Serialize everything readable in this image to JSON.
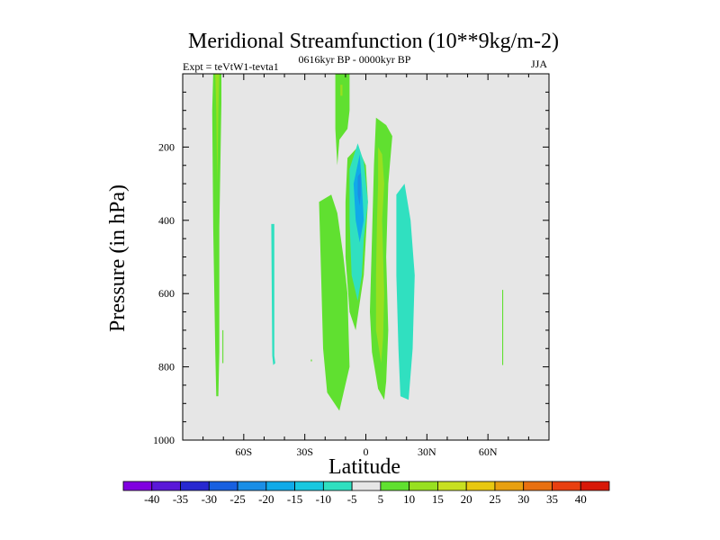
{
  "chart_data": {
    "type": "contour",
    "title": "Meridional Streamfunction (10**9kg/m-2)",
    "subtitle_left": "Expt = teVtW1-tevta1",
    "subtitle_center": "0616kyr BP - 0000kyr BP",
    "subtitle_right": "JJA",
    "xlabel": "Latitude",
    "ylabel": "Pressure (in hPa)",
    "xlim": [
      -90,
      90
    ],
    "ylim": [
      0,
      1000
    ],
    "x_ticks": [
      {
        "value": -60,
        "label": "60S"
      },
      {
        "value": -30,
        "label": "30S"
      },
      {
        "value": 0,
        "label": "0"
      },
      {
        "value": 30,
        "label": "30N"
      },
      {
        "value": 60,
        "label": "60N"
      }
    ],
    "y_ticks": [
      {
        "value": 200,
        "label": "200"
      },
      {
        "value": 400,
        "label": "400"
      },
      {
        "value": 600,
        "label": "600"
      },
      {
        "value": 800,
        "label": "800"
      },
      {
        "value": 1000,
        "label": "1000"
      }
    ],
    "background_color": "#e6e6e6",
    "regions": [
      {
        "level": 5,
        "poly": [
          [
            -75,
            0
          ],
          [
            -71,
            0
          ],
          [
            -71,
            80
          ],
          [
            -72,
            420
          ],
          [
            -72,
            760
          ],
          [
            -72.5,
            880
          ],
          [
            -73.5,
            880
          ],
          [
            -74,
            760
          ],
          [
            -75,
            420
          ],
          [
            -75.5,
            100
          ]
        ]
      },
      {
        "level": 10,
        "poly": [
          [
            -74,
            0
          ],
          [
            -72,
            0
          ],
          [
            -72.5,
            100
          ],
          [
            -73,
            300
          ],
          [
            -73.5,
            100
          ]
        ]
      },
      {
        "level": 5,
        "poly": [
          [
            -70.5,
            700
          ],
          [
            -70,
            700
          ],
          [
            -70,
            790
          ],
          [
            -70.5,
            790
          ]
        ]
      },
      {
        "level": -5,
        "poly": [
          [
            -46.5,
            410
          ],
          [
            -45,
            410
          ],
          [
            -45,
            770
          ],
          [
            -44.5,
            790
          ],
          [
            -45.5,
            795
          ],
          [
            -46,
            770
          ]
        ]
      },
      {
        "level": 5,
        "poly": [
          [
            -27,
            780
          ],
          [
            -26.5,
            780
          ],
          [
            -26.5,
            785
          ],
          [
            -27,
            785
          ]
        ]
      },
      {
        "level": 5,
        "poly": [
          [
            -15,
            0
          ],
          [
            -8,
            0
          ],
          [
            -8,
            100
          ],
          [
            -9,
            150
          ],
          [
            -13,
            180
          ],
          [
            -14,
            250
          ],
          [
            -15,
            150
          ]
        ]
      },
      {
        "level": 10,
        "poly": [
          [
            -12.5,
            30
          ],
          [
            -11.5,
            30
          ],
          [
            -11.5,
            60
          ],
          [
            -12.5,
            60
          ]
        ]
      },
      {
        "level": 5,
        "poly": [
          [
            -23,
            350
          ],
          [
            -17,
            330
          ],
          [
            -14,
            380
          ],
          [
            -11,
            500
          ],
          [
            -9,
            600
          ],
          [
            -8,
            800
          ],
          [
            -13,
            920
          ],
          [
            -19,
            870
          ],
          [
            -21,
            750
          ],
          [
            -22,
            550
          ]
        ]
      },
      {
        "level": 5,
        "poly": [
          [
            -9,
            230
          ],
          [
            -4,
            200
          ],
          [
            0,
            250
          ],
          [
            1,
            350
          ],
          [
            -1,
            550
          ],
          [
            -5,
            700
          ],
          [
            -8,
            650
          ],
          [
            -10,
            500
          ],
          [
            -10,
            350
          ]
        ]
      },
      {
        "level": -5,
        "poly": [
          [
            -8,
            260
          ],
          [
            -4,
            190
          ],
          [
            -1,
            240
          ],
          [
            1,
            350
          ],
          [
            -1,
            450
          ],
          [
            -2,
            550
          ],
          [
            -4,
            620
          ],
          [
            -7,
            550
          ],
          [
            -8,
            400
          ]
        ]
      },
      {
        "level": -10,
        "poly": [
          [
            -6,
            300
          ],
          [
            -3,
            220
          ],
          [
            -2,
            300
          ],
          [
            -1,
            400
          ],
          [
            -3,
            460
          ],
          [
            -5,
            400
          ]
        ]
      },
      {
        "level": -15,
        "poly": [
          [
            -4,
            280
          ],
          [
            -2.5,
            270
          ],
          [
            -2.5,
            330
          ],
          [
            -3,
            360
          ],
          [
            -4,
            330
          ]
        ]
      },
      {
        "level": 5,
        "poly": [
          [
            5,
            120
          ],
          [
            10,
            140
          ],
          [
            13,
            170
          ],
          [
            11,
            300
          ],
          [
            10,
            500
          ],
          [
            11,
            700
          ],
          [
            10,
            840
          ],
          [
            9,
            890
          ],
          [
            6,
            860
          ],
          [
            3,
            760
          ],
          [
            2,
            650
          ],
          [
            3,
            450
          ],
          [
            4,
            250
          ]
        ]
      },
      {
        "level": 10,
        "poly": [
          [
            6,
            200
          ],
          [
            8,
            220
          ],
          [
            9,
            300
          ],
          [
            8,
            400
          ],
          [
            8.5,
            500
          ],
          [
            9,
            600
          ],
          [
            8.5,
            720
          ],
          [
            7.5,
            790
          ],
          [
            5,
            700
          ],
          [
            5,
            550
          ],
          [
            5.5,
            400
          ],
          [
            6,
            300
          ]
        ]
      },
      {
        "level": -5,
        "poly": [
          [
            15,
            330
          ],
          [
            19,
            300
          ],
          [
            22,
            400
          ],
          [
            24,
            550
          ],
          [
            23,
            750
          ],
          [
            21,
            890
          ],
          [
            17,
            880
          ],
          [
            16,
            750
          ],
          [
            15,
            550
          ]
        ]
      },
      {
        "level": 5,
        "poly": [
          [
            67,
            590
          ],
          [
            67.5,
            590
          ],
          [
            67.5,
            795
          ],
          [
            67,
            795
          ]
        ]
      }
    ],
    "colorbar": {
      "labels": [
        "-40",
        "-35",
        "-30",
        "-25",
        "-20",
        "-15",
        "-10",
        "-5",
        "5",
        "10",
        "15",
        "20",
        "25",
        "30",
        "35",
        "40"
      ],
      "colors": [
        "#8000e0",
        "#5a18d8",
        "#2828d0",
        "#1860e0",
        "#1a8ee6",
        "#10aae8",
        "#18c8e0",
        "#30e0c0",
        "#e6e6e6",
        "#60e030",
        "#98e020",
        "#c8e020",
        "#e8c810",
        "#e8a010",
        "#e87010",
        "#e84010",
        "#d81808"
      ]
    },
    "level_colors": {
      "-15": "#1a8ee6",
      "-10": "#10aae8",
      "-5": "#30e0c0",
      "5": "#60e030",
      "10": "#98e020"
    }
  }
}
